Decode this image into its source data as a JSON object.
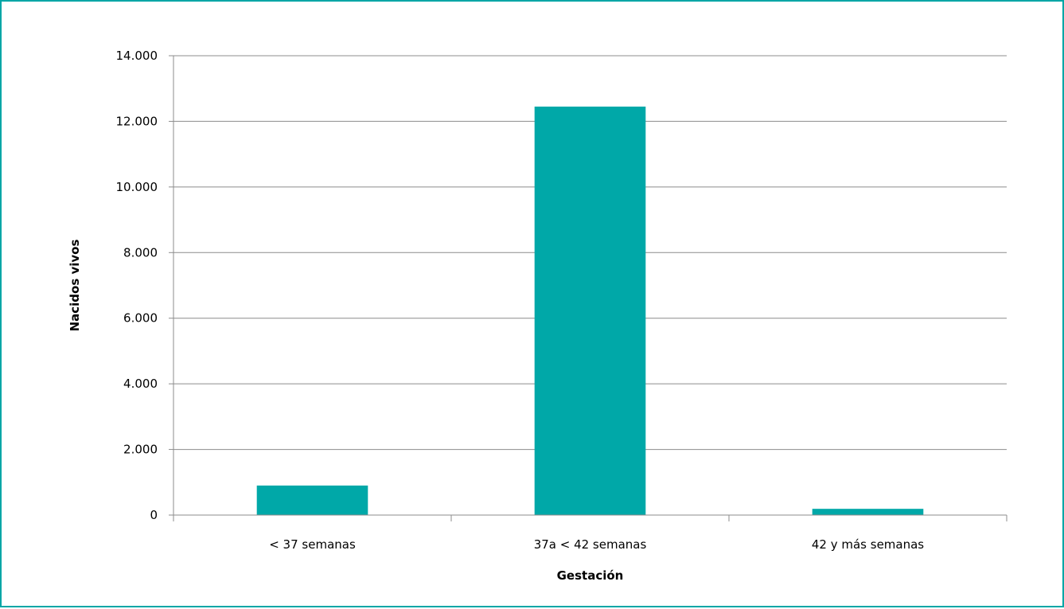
{
  "chart_data": {
    "type": "bar",
    "title": "",
    "xlabel": "Gestación",
    "ylabel": "Nacidos vivos",
    "categories": [
      "< 37 semanas",
      "37a < 42 semanas",
      "42 y más semanas"
    ],
    "values": [
      900,
      12450,
      190
    ],
    "ylim": [
      0,
      14000
    ],
    "yticks": [
      0,
      2000,
      4000,
      6000,
      8000,
      10000,
      12000,
      14000
    ],
    "ytick_labels": [
      "0",
      "2.000",
      "4.000",
      "6.000",
      "8.000",
      "10.000",
      "12.000",
      "14.000"
    ],
    "grid": true,
    "legend": "none",
    "bar_color": "#00a8a8",
    "frame_color": "#00a6a6"
  }
}
